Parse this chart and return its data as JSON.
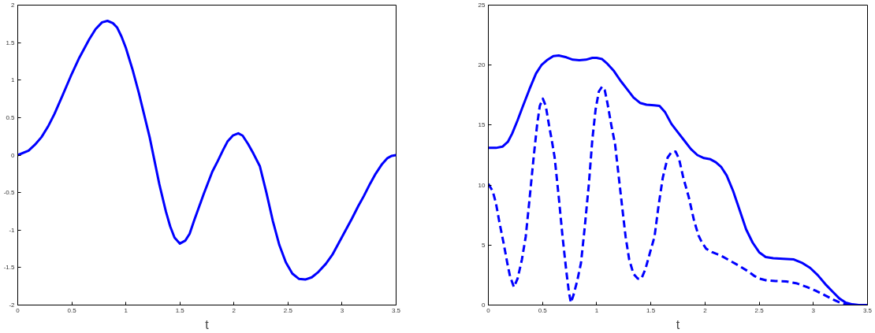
{
  "chart_data": [
    {
      "type": "line",
      "xlabel": "t",
      "xlim": [
        0,
        3.5
      ],
      "ylim": [
        -2,
        2
      ],
      "xticks": [
        0,
        0.5,
        1,
        1.5,
        2,
        2.5,
        3,
        3.5
      ],
      "yticks": [
        -2,
        -1.5,
        -1,
        -0.5,
        0,
        0.5,
        1,
        1.5,
        2
      ],
      "grid": false,
      "series": [
        {
          "color": "#0000ff",
          "line_style": "solid",
          "x": [
            0,
            0.1,
            0.16,
            0.22,
            0.28,
            0.34,
            0.41,
            0.49,
            0.57,
            0.66,
            0.72,
            0.78,
            0.83,
            0.88,
            0.92,
            0.96,
            1.0,
            1.06,
            1.12,
            1.22,
            1.31,
            1.37,
            1.41,
            1.45,
            1.5,
            1.55,
            1.59,
            1.63,
            1.72,
            1.8,
            1.85,
            1.9,
            1.94,
            1.99,
            2.04,
            2.08,
            2.13,
            2.18,
            2.24,
            2.3,
            2.36,
            2.42,
            2.48,
            2.54,
            2.6,
            2.66,
            2.72,
            2.78,
            2.85,
            2.91,
            2.97,
            3.03,
            3.09,
            3.15,
            3.2,
            3.26,
            3.31,
            3.37,
            3.42,
            3.46,
            3.5
          ],
          "values": [
            0,
            0.06,
            0.14,
            0.24,
            0.38,
            0.55,
            0.78,
            1.05,
            1.3,
            1.54,
            1.68,
            1.77,
            1.79,
            1.76,
            1.7,
            1.58,
            1.43,
            1.15,
            0.83,
            0.24,
            -0.39,
            -0.75,
            -0.95,
            -1.1,
            -1.18,
            -1.14,
            -1.05,
            -0.88,
            -0.52,
            -0.22,
            -0.08,
            0.07,
            0.18,
            0.26,
            0.29,
            0.26,
            0.15,
            0.02,
            -0.15,
            -0.5,
            -0.88,
            -1.2,
            -1.43,
            -1.58,
            -1.65,
            -1.66,
            -1.63,
            -1.56,
            -1.45,
            -1.33,
            -1.17,
            -1.01,
            -0.85,
            -0.68,
            -0.55,
            -0.38,
            -0.25,
            -0.12,
            -0.04,
            -0.01,
            0
          ]
        }
      ]
    },
    {
      "type": "line",
      "xlabel": "t",
      "xlim": [
        0,
        3.5
      ],
      "ylim": [
        0,
        25
      ],
      "xticks": [
        0,
        0.5,
        1,
        1.5,
        2,
        2.5,
        3,
        3.5
      ],
      "yticks": [
        0,
        5,
        10,
        15,
        20,
        25
      ],
      "grid": false,
      "series": [
        {
          "color": "#0000ff",
          "line_style": "solid",
          "x": [
            0,
            0.07,
            0.13,
            0.18,
            0.22,
            0.27,
            0.32,
            0.38,
            0.44,
            0.49,
            0.54,
            0.6,
            0.65,
            0.72,
            0.78,
            0.84,
            0.9,
            0.96,
            1.0,
            1.05,
            1.1,
            1.16,
            1.22,
            1.28,
            1.34,
            1.4,
            1.46,
            1.53,
            1.58,
            1.63,
            1.69,
            1.75,
            1.81,
            1.87,
            1.93,
            1.99,
            2.05,
            2.1,
            2.15,
            2.2,
            2.26,
            2.32,
            2.38,
            2.44,
            2.5,
            2.56,
            2.63,
            2.72,
            2.82,
            2.9,
            2.97,
            3.04,
            3.11,
            3.18,
            3.24,
            3.3,
            3.36,
            3.42,
            3.5
          ],
          "values": [
            13.1,
            13.1,
            13.2,
            13.6,
            14.3,
            15.4,
            16.6,
            18.0,
            19.3,
            20.0,
            20.4,
            20.75,
            20.8,
            20.65,
            20.45,
            20.4,
            20.45,
            20.6,
            20.6,
            20.5,
            20.1,
            19.5,
            18.7,
            18.0,
            17.3,
            16.85,
            16.7,
            16.65,
            16.6,
            16.1,
            15.1,
            14.4,
            13.7,
            13.0,
            12.5,
            12.25,
            12.15,
            11.9,
            11.5,
            10.8,
            9.5,
            7.9,
            6.3,
            5.2,
            4.4,
            4.0,
            3.9,
            3.85,
            3.8,
            3.5,
            3.1,
            2.5,
            1.75,
            1.1,
            0.55,
            0.2,
            0.06,
            0,
            0
          ]
        },
        {
          "color": "#0000ff",
          "line_style": "dashed",
          "x": [
            0,
            0.04,
            0.07,
            0.1,
            0.14,
            0.175,
            0.2,
            0.236,
            0.27,
            0.31,
            0.345,
            0.38,
            0.418,
            0.45,
            0.475,
            0.503,
            0.53,
            0.56,
            0.59,
            0.612,
            0.65,
            0.685,
            0.72,
            0.745,
            0.762,
            0.785,
            0.82,
            0.855,
            0.89,
            0.928,
            0.96,
            0.99,
            1.02,
            1.049,
            1.075,
            1.1,
            1.135,
            1.17,
            1.2,
            1.235,
            1.267,
            1.3,
            1.34,
            1.38,
            1.413,
            1.45,
            1.49,
            1.534,
            1.57,
            1.61,
            1.655,
            1.69,
            1.728,
            1.76,
            1.8,
            1.85,
            1.9,
            1.94,
            1.97,
            2.01,
            2.068,
            2.15,
            2.23,
            2.31,
            2.4,
            2.46,
            2.505,
            2.57,
            2.65,
            2.748,
            2.85,
            2.942,
            3.02,
            3.1,
            3.185,
            3.26,
            3.35,
            3.5
          ],
          "values": [
            10.1,
            9.5,
            8.5,
            7.0,
            5.2,
            3.5,
            2.4,
            1.5,
            2.2,
            3.8,
            5.7,
            8.8,
            12.3,
            15.0,
            16.6,
            17.2,
            16.6,
            15.0,
            13.5,
            12.3,
            9.0,
            5.7,
            2.8,
            1.0,
            0.2,
            0.8,
            2.0,
            3.5,
            6.5,
            10.1,
            13.8,
            16.3,
            17.8,
            18.2,
            17.9,
            16.8,
            15.0,
            13.4,
            11.0,
            8.2,
            5.7,
            3.8,
            2.6,
            2.2,
            2.2,
            3.0,
            4.3,
            5.7,
            8.2,
            10.6,
            12.3,
            12.75,
            12.8,
            12.2,
            10.6,
            9.0,
            7.0,
            5.8,
            5.25,
            4.7,
            4.4,
            4.1,
            3.7,
            3.3,
            2.8,
            2.4,
            2.2,
            2.05,
            2.0,
            1.97,
            1.8,
            1.5,
            1.2,
            0.85,
            0.45,
            0.15,
            0,
            0
          ]
        }
      ]
    }
  ]
}
